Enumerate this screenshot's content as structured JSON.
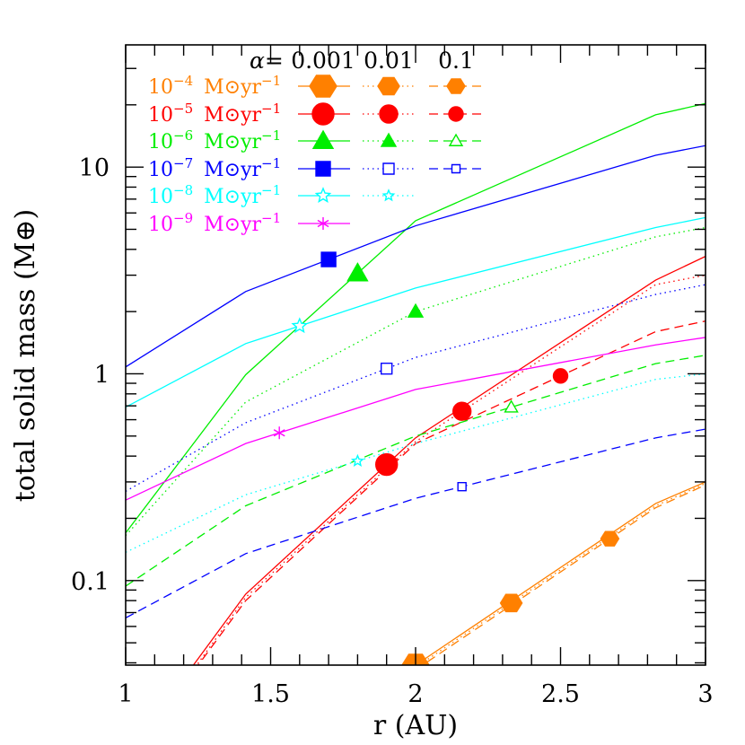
{
  "chart_data": {
    "type": "line",
    "xlabel": "r (AU)",
    "ylabel": "total solid mass (M⊕)",
    "xlim": [
      1,
      3
    ],
    "ylim": [
      0.039,
      39
    ],
    "yscale": "log",
    "grid": false,
    "legend_placement": "top-left",
    "x_ticks": [
      1,
      1.5,
      2,
      2.5,
      3
    ],
    "x_tick_labels": [
      "1",
      "1.5",
      "2",
      "2.5",
      "3"
    ],
    "y_ticks": [
      0.1,
      1,
      10
    ],
    "y_tick_labels": [
      "0.1",
      "1",
      "10"
    ],
    "x": [
      1,
      1.414,
      2,
      2.828,
      3
    ],
    "legend_header": {
      "symbol": "α=",
      "alphas": [
        "0.001",
        "0.01",
        "0.1"
      ]
    },
    "styles": [
      "solid",
      "dotted",
      "dashed"
    ],
    "groups": [
      {
        "base": "10",
        "exp": "−4",
        "unit": "M⊙yr",
        "unit_exp": "−1",
        "color": "#ff8000",
        "marker": "hexagon",
        "series": [
          {
            "alpha": "0.001",
            "values": [
              null,
              null,
              0.039,
              0.236,
              0.3
            ],
            "marker_r": 2.0,
            "filled": true
          },
          {
            "alpha": "0.01",
            "values": [
              null,
              null,
              0.038,
              0.23,
              0.295
            ],
            "marker_r": 2.33,
            "filled": true
          },
          {
            "alpha": "0.1",
            "values": [
              null,
              null,
              0.037,
              0.225,
              0.29
            ],
            "marker_r": 2.67,
            "filled": true
          }
        ]
      },
      {
        "base": "10",
        "exp": "−5",
        "unit": "M⊙yr",
        "unit_exp": "−1",
        "color": "#ff0000",
        "marker": "circle",
        "series": [
          {
            "alpha": "0.001",
            "values": [
              0.014,
              0.086,
              0.49,
              2.84,
              3.7
            ],
            "marker_r": 1.9,
            "filled": true
          },
          {
            "alpha": "0.01",
            "values": [
              0.013,
              0.083,
              0.47,
              2.7,
              3.0
            ],
            "marker_r": 2.16,
            "filled": true
          },
          {
            "alpha": "0.1",
            "values": [
              0.013,
              0.08,
              0.46,
              1.6,
              1.8
            ],
            "marker_r": 2.5,
            "filled": true
          }
        ]
      },
      {
        "base": "10",
        "exp": "−6",
        "unit": "M⊙yr",
        "unit_exp": "−1",
        "color": "#00ee00",
        "marker": "triangle",
        "series": [
          {
            "alpha": "0.001",
            "values": [
              0.17,
              0.99,
              5.5,
              17.9,
              20.3
            ],
            "marker_r": 1.8,
            "filled": true
          },
          {
            "alpha": "0.01",
            "values": [
              0.165,
              0.73,
              2.0,
              4.6,
              5.1
            ],
            "marker_r": 2.0,
            "filled": true
          },
          {
            "alpha": "0.1",
            "values": [
              0.094,
              0.23,
              0.5,
              1.12,
              1.23
            ],
            "marker_r": 2.33,
            "filled": false
          }
        ]
      },
      {
        "base": "10",
        "exp": "−7",
        "unit": "M⊙yr",
        "unit_exp": "−1",
        "color": "#0000ff",
        "marker": "square",
        "series": [
          {
            "alpha": "0.001",
            "values": [
              1.08,
              2.5,
              5.2,
              11.4,
              12.7
            ],
            "marker_r": 1.7,
            "filled": true
          },
          {
            "alpha": "0.01",
            "values": [
              0.27,
              0.58,
              1.2,
              2.42,
              2.7
            ],
            "marker_r": 1.9,
            "filled": false
          },
          {
            "alpha": "0.1",
            "values": [
              0.066,
              0.135,
              0.25,
              0.49,
              0.54
            ],
            "marker_r": 2.16,
            "filled": false
          }
        ]
      },
      {
        "base": "10",
        "exp": "−8",
        "unit": "M⊙yr",
        "unit_exp": "−1",
        "color": "#00ffff",
        "marker": "star",
        "series": [
          {
            "alpha": "0.001",
            "values": [
              0.69,
              1.4,
              2.6,
              5.1,
              5.7
            ],
            "marker_r": 1.6,
            "filled": false
          },
          {
            "alpha": "0.01",
            "values": [
              0.137,
              0.26,
              0.46,
              0.94,
              1.0
            ],
            "marker_r": 1.8,
            "filled": false
          }
        ]
      },
      {
        "base": "10",
        "exp": "−9",
        "unit": "M⊙yr",
        "unit_exp": "−1",
        "color": "#ff00ff",
        "marker": "asterisk",
        "series": [
          {
            "alpha": "0.001",
            "values": [
              0.245,
              0.46,
              0.84,
              1.38,
              1.5
            ],
            "marker_r": 1.53,
            "filled": false
          }
        ]
      }
    ]
  }
}
